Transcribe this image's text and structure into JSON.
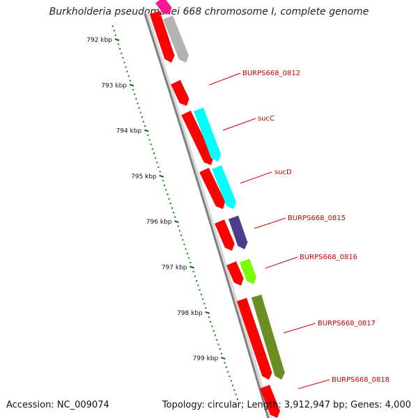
{
  "title": "Burkholderia pseudomallei 668 chromosome I, complete genome",
  "footer": {
    "accession": "Accession: NC_009074",
    "summary": "Topology: circular; Length: 3,912,947 bp; Genes: 4,000"
  },
  "colors": {
    "background": "#ffffff",
    "backbone": "#7f7f7f",
    "cds": "#ff0000",
    "ruler_major": "#006400",
    "ruler_minor": "#008000",
    "label_line": "#cc0000",
    "label_text": "#cc0000"
  },
  "ruler": {
    "ticks": [
      {
        "kbp": 792,
        "label": "792 kbp"
      },
      {
        "kbp": 793,
        "label": "793 kbp"
      },
      {
        "kbp": 794,
        "label": "794 kbp"
      },
      {
        "kbp": 795,
        "label": "795 kbp"
      },
      {
        "kbp": 796,
        "label": "796 kbp"
      },
      {
        "kbp": 797,
        "label": "797 kbp"
      },
      {
        "kbp": 798,
        "label": "798 kbp"
      },
      {
        "kbp": 799,
        "label": "799 kbp"
      }
    ]
  },
  "genes": [
    {
      "name": "",
      "cog_color": "#ff1493"
    },
    {
      "name": "",
      "cog_color": "#b3b3b3"
    },
    {
      "name": "BURPS668_0812",
      "cog_color": ""
    },
    {
      "name": "sucC",
      "cog_color": "#00ffff"
    },
    {
      "name": "sucD",
      "cog_color": "#00ffff"
    },
    {
      "name": "BURPS668_0815",
      "cog_color": "#4b3d8b"
    },
    {
      "name": "BURPS668_0816",
      "cog_color": "#7cfc00"
    },
    {
      "name": "BURPS668_0817",
      "cog_color": "#6b8e23"
    },
    {
      "name": "BURPS668_0818",
      "cog_color": ""
    }
  ]
}
